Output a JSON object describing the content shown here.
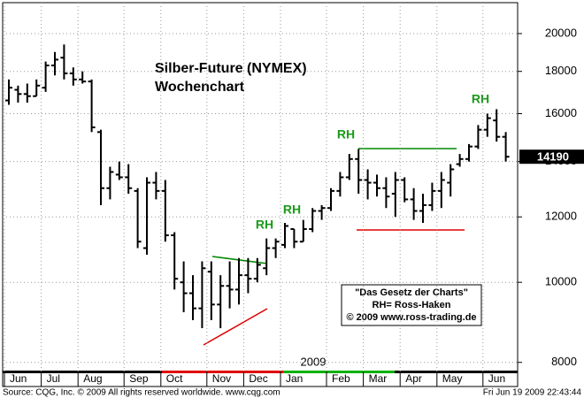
{
  "chart_data": {
    "type": "ohlc",
    "title": "Silber-Future (NYMEX)",
    "subtitle": "Wochenchart",
    "year_label": "2009",
    "annotations": [
      "RH",
      "RH",
      "RH",
      "RH"
    ],
    "info_box": [
      "\"Das Gesetz der Charts\"",
      "RH= Ross-Haken",
      "© 2009  www.ross-trading.de"
    ],
    "source": "Source: CQG, Inc. © 2009 All rights reserved worldwide. www.cqg.com",
    "timestamp": "Fri Jun 19 2009 22:43:44",
    "categories": [
      "Jun",
      null,
      null,
      null,
      "Jul",
      null,
      null,
      null,
      "Aug",
      null,
      null,
      null,
      null,
      "Sep",
      null,
      null,
      null,
      "Oct",
      null,
      null,
      null,
      null,
      "Nov",
      null,
      null,
      null,
      "Dec",
      null,
      null,
      null,
      "Jan",
      null,
      null,
      null,
      null,
      "Feb",
      null,
      null,
      null,
      "Mar",
      null,
      null,
      null,
      "Apr",
      null,
      null,
      null,
      "May",
      null,
      null,
      null,
      null,
      "Jun",
      null,
      null
    ],
    "open": [
      16600,
      17100,
      16900,
      16800,
      17200,
      18300,
      18700,
      17900,
      17600,
      17500,
      15200,
      13000,
      13500,
      13400,
      12900,
      11000,
      13200,
      12900,
      11400,
      10000,
      9700,
      9300,
      10300,
      9400,
      9900,
      9800,
      10200,
      10100,
      10400,
      11000,
      11100,
      11600,
      11200,
      11600,
      12200,
      12300,
      12900,
      13400,
      14100,
      13300,
      13200,
      13000,
      12800,
      13300,
      12600,
      12200,
      12400,
      12900,
      13200,
      13900,
      14100,
      14600,
      15300,
      15700,
      15000
    ],
    "high": [
      17600,
      17300,
      17400,
      17600,
      18500,
      19000,
      19400,
      18200,
      18000,
      17600,
      15300,
      13800,
      14000,
      13900,
      13000,
      13400,
      13600,
      13300,
      11500,
      10600,
      10200,
      10600,
      10600,
      10200,
      10600,
      10700,
      10700,
      10700,
      11300,
      11300,
      11800,
      11600,
      11900,
      12300,
      12400,
      13000,
      13600,
      14300,
      14500,
      13700,
      13500,
      13400,
      13600,
      13400,
      13000,
      12800,
      13200,
      13600,
      13900,
      14300,
      14700,
      15500,
      16000,
      16200,
      15200
    ],
    "low": [
      16400,
      16500,
      16500,
      16800,
      17000,
      17800,
      17600,
      17300,
      17400,
      15200,
      12400,
      12600,
      13300,
      12800,
      11000,
      10800,
      12600,
      11200,
      9800,
      9200,
      9000,
      8800,
      9000,
      8800,
      9300,
      9400,
      9700,
      10000,
      10200,
      10700,
      11000,
      11000,
      11200,
      11500,
      11900,
      12200,
      12700,
      13300,
      12800,
      12600,
      12700,
      12300,
      12000,
      12500,
      11900,
      11800,
      12200,
      12300,
      12700,
      13800,
      14000,
      14500,
      15000,
      14800,
      14000
    ],
    "close": [
      17200,
      16900,
      16800,
      17300,
      18300,
      18600,
      17900,
      17600,
      17500,
      15400,
      13000,
      13600,
      13400,
      13000,
      11200,
      13200,
      12900,
      11400,
      10100,
      9700,
      9300,
      10400,
      9400,
      9900,
      9800,
      10200,
      10100,
      10500,
      11000,
      11200,
      11700,
      11200,
      11600,
      12200,
      12300,
      12900,
      13400,
      14100,
      13300,
      13200,
      13000,
      12700,
      13300,
      12600,
      12200,
      12400,
      12900,
      13300,
      13700,
      14100,
      14600,
      15300,
      15800,
      15000,
      14190
    ],
    "color": "#000000",
    "log_scale": true,
    "grid": true,
    "ylim": [
      7800,
      21800
    ],
    "yticks": [
      8000,
      10000,
      12000,
      14000,
      16000,
      18000,
      20000
    ]
  }
}
